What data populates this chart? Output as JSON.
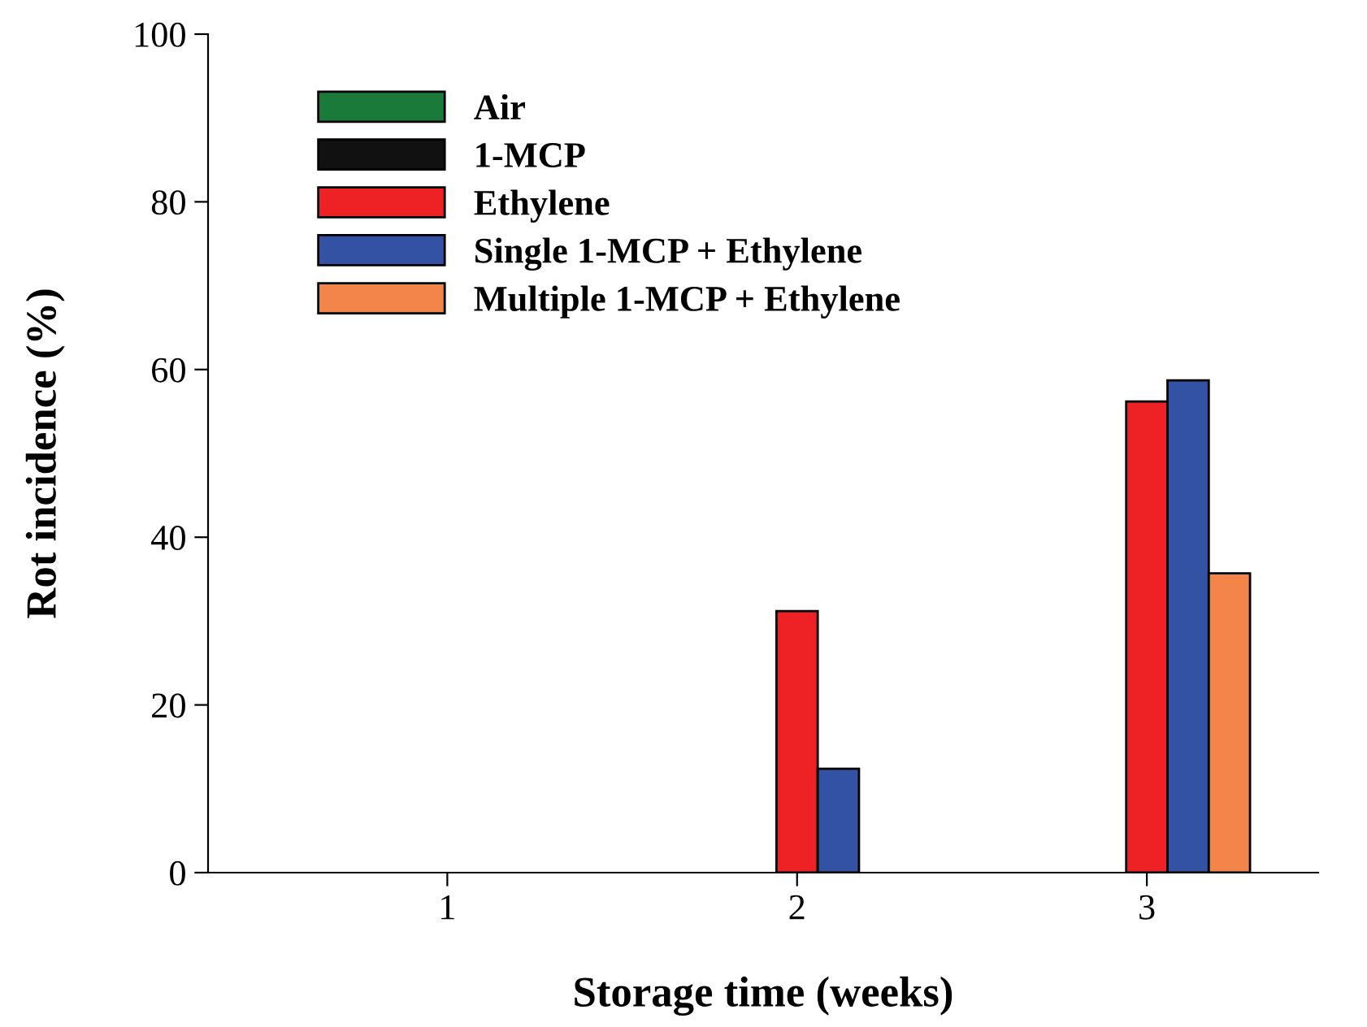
{
  "chart_data": {
    "type": "bar",
    "xlabel": "Storage time (weeks)",
    "ylabel": "Rot incidence (%)",
    "categories": [
      "1",
      "2",
      "3"
    ],
    "series": [
      {
        "name": "Air",
        "color": "#1a7a3a",
        "values": [
          0,
          0,
          0
        ]
      },
      {
        "name": "1-MCP",
        "color": "#111111",
        "values": [
          0,
          0,
          0
        ]
      },
      {
        "name": "Ethylene",
        "color": "#ee2224",
        "values": [
          0,
          31.2,
          56.2
        ]
      },
      {
        "name": "Single 1-MCP + Ethylene",
        "color": "#3452a4",
        "values": [
          0,
          12.4,
          58.7
        ]
      },
      {
        "name": "Multiple 1-MCP + Ethylene",
        "color": "#f3844a",
        "values": [
          0,
          0,
          35.7
        ]
      }
    ],
    "ylim": [
      0,
      100
    ],
    "yticks": [
      0,
      20,
      40,
      60,
      80,
      100
    ],
    "grid": false,
    "legend": "top left"
  }
}
